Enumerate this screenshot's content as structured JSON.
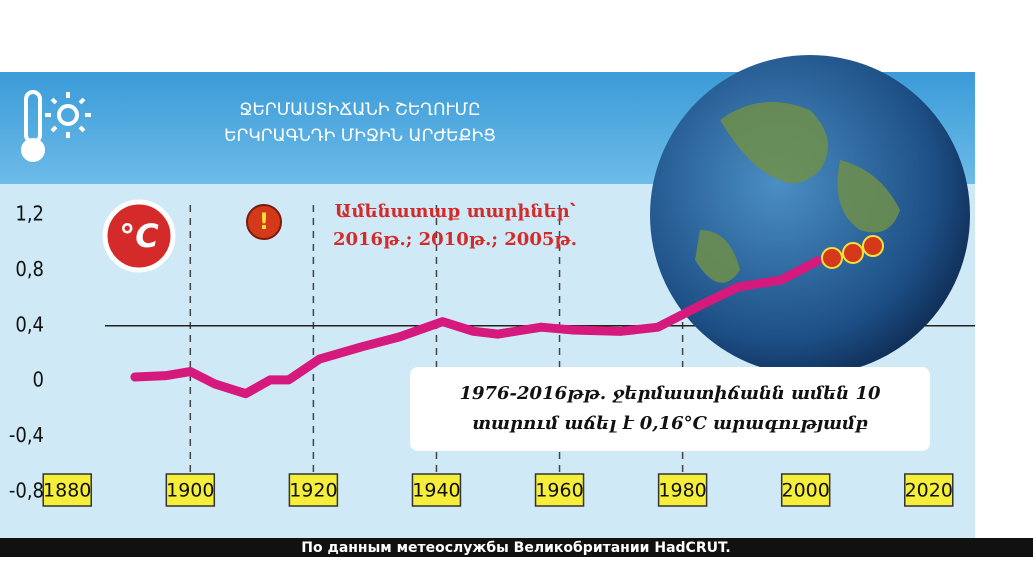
{
  "chart_data": {
    "type": "line",
    "title": [
      "ՋԵՐՄԱՍՏԻՃԱՆԻ ՇԵՂՈՒՄԸ",
      "ԵՐԿՐԱԳՆԴԻ ՄԻՋԻՆ ԱՐԺԵՔԻՑ"
    ],
    "unit_badge": "°C",
    "annotation": [
      "Ամենատաք տարիներ՝",
      "2016թ.; 2010թ.; 2005թ."
    ],
    "note": [
      "1976-2016թթ. ջերմաստիճանն ամեն 10",
      "տարում աճել է 0,16°C արագությամբ"
    ],
    "source": "По данным метеослужбы Великобритании HadCRUT.",
    "x": [
      1891,
      1896,
      1900,
      1904,
      1909,
      1913,
      1916,
      1921,
      1928,
      1934,
      1941,
      1946,
      1950,
      1957,
      1962,
      1970,
      1976,
      1983,
      1989,
      1996,
      2002
    ],
    "values": [
      0.03,
      0.04,
      0.07,
      -0.02,
      -0.09,
      0.01,
      0.01,
      0.16,
      0.25,
      0.32,
      0.43,
      0.36,
      0.34,
      0.39,
      0.37,
      0.36,
      0.39,
      0.55,
      0.68,
      0.73,
      0.87
    ],
    "color": "#d6197c",
    "xlim": [
      1872,
      2028
    ],
    "xticks": [
      1880,
      1900,
      1920,
      1940,
      1960,
      1980,
      2000,
      2020
    ],
    "ylim": [
      -0.8,
      1.2
    ],
    "yticks": [
      {
        "value": 1.2,
        "label": "1,2"
      },
      {
        "value": 0.8,
        "label": "0,8"
      },
      {
        "value": 0.4,
        "label": "0,4"
      },
      0,
      {
        "value": -0.4,
        "label": "-0,4"
      },
      {
        "value": -0.8,
        "label": "-0,8"
      }
    ],
    "hline": 0.4,
    "dashed_x": [
      1900,
      1920,
      1940,
      1960,
      1980
    ]
  }
}
